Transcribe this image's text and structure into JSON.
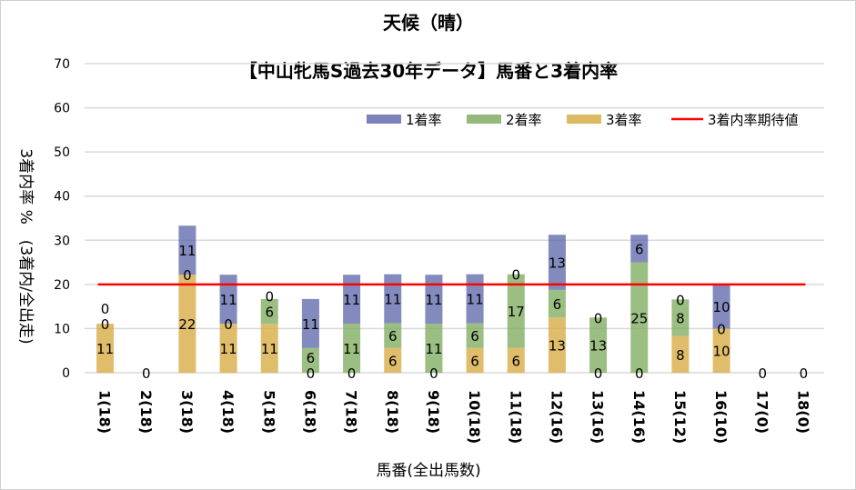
{
  "chart_data": {
    "type": "bar",
    "stacked": true,
    "title": "天候（晴）",
    "subtitle": "【中山牝馬S過去30年データ】馬番と3着内率",
    "xlabel": "馬番(全出馬数)",
    "ylabel": "3着内率 %　(3着内/全出走)",
    "ylim": [
      0,
      70
    ],
    "yticks": [
      0,
      10,
      20,
      30,
      40,
      50,
      60,
      70
    ],
    "grid": true,
    "legend_position": "top-right",
    "categories": [
      "1(18)",
      "2(18)",
      "3(18)",
      "4(18)",
      "5(18)",
      "6(18)",
      "7(18)",
      "8(18)",
      "9(18)",
      "10(18)",
      "11(18)",
      "12(16)",
      "13(16)",
      "14(16)",
      "15(12)",
      "16(10)",
      "17(0)",
      "18(0)"
    ],
    "series": [
      {
        "name": "3着率",
        "color": "#d4a73a",
        "values": [
          11.1,
          0,
          22.2,
          11.1,
          11.1,
          0,
          0,
          5.6,
          0,
          5.6,
          5.6,
          12.5,
          0,
          0,
          8.3,
          10,
          0,
          0
        ]
      },
      {
        "name": "2着率",
        "color": "#7aa85a",
        "values": [
          0,
          0,
          0,
          0,
          5.6,
          5.6,
          11.1,
          5.6,
          11.1,
          5.6,
          16.7,
          6.25,
          12.5,
          25,
          8.3,
          0,
          0,
          0
        ]
      },
      {
        "name": "1着率",
        "color": "#5a64a8",
        "values": [
          0,
          0,
          11.1,
          11.1,
          0,
          11.1,
          11.1,
          11.1,
          11.1,
          11.1,
          0,
          12.5,
          0,
          6.25,
          0,
          10,
          0,
          0
        ]
      }
    ],
    "reference_line": {
      "name": "3着内率期待値",
      "value": 20,
      "color": "#ff0000"
    }
  }
}
